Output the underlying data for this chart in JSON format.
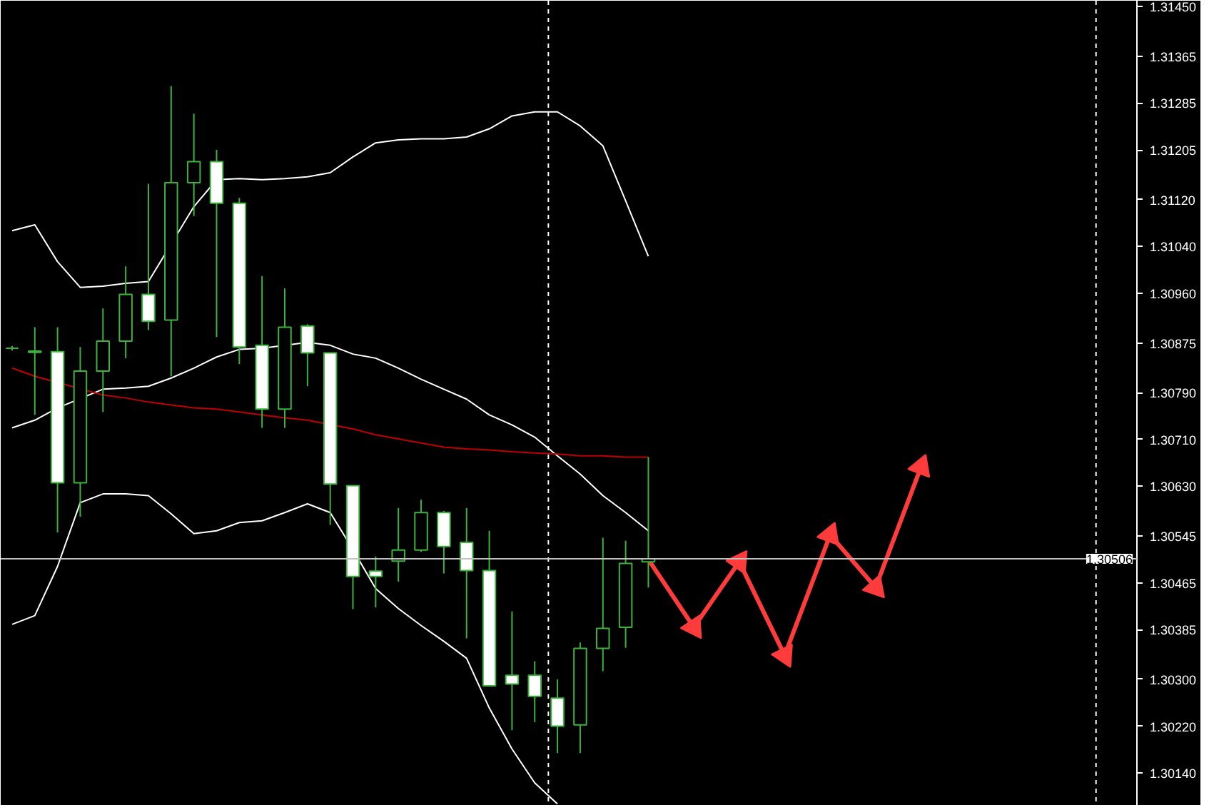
{
  "chart_data": {
    "type": "candlestick",
    "color": "#3cb43c",
    "tick_labels": "y",
    "grid": false,
    "marker": "none",
    "line_style": "solid",
    "categories": [
      null,
      null,
      null,
      null,
      null,
      null,
      null,
      null,
      null,
      null,
      null,
      null,
      null,
      null,
      null,
      null,
      null,
      null,
      null,
      null,
      null,
      null,
      null,
      null,
      null,
      null,
      null,
      null,
      null,
      null,
      null,
      null,
      null,
      null,
      null,
      null,
      null,
      null,
      null,
      null,
      null,
      null,
      null,
      null,
      null,
      null,
      null,
      null,
      null,
      null
    ],
    "ohlc": [
      [
        1.30866,
        1.3087,
        1.30862,
        1.30866
      ],
      [
        1.30861,
        1.30902,
        1.30752,
        1.30859
      ],
      [
        1.3086,
        1.30902,
        1.30551,
        1.30636
      ],
      [
        1.30636,
        1.30868,
        1.30578,
        1.30827
      ],
      [
        1.30827,
        1.30934,
        1.30757,
        1.30878
      ],
      [
        1.30878,
        1.31006,
        1.30849,
        1.30958
      ],
      [
        1.30958,
        1.31147,
        1.30897,
        1.30912
      ],
      [
        1.30914,
        1.31314,
        1.30818,
        1.31149
      ],
      [
        1.31149,
        1.31267,
        1.31092,
        1.31185
      ],
      [
        1.31185,
        1.31205,
        1.30885,
        1.31114
      ],
      [
        1.31114,
        1.31123,
        1.30839,
        1.30868
      ],
      [
        1.30871,
        1.30989,
        1.3073,
        1.30762
      ],
      [
        1.30762,
        1.30968,
        1.3073,
        1.30902
      ],
      [
        1.30904,
        1.30907,
        1.30801,
        1.30858
      ],
      [
        1.30858,
        1.30858,
        1.30564,
        1.30634
      ],
      [
        1.30631,
        1.30631,
        1.3042,
        1.30476
      ],
      [
        1.30485,
        1.3051,
        1.30423,
        1.30476
      ],
      [
        1.30502,
        1.30593,
        1.30467,
        1.30521
      ],
      [
        1.30521,
        1.30607,
        1.30518,
        1.30585
      ],
      [
        1.30585,
        1.30588,
        1.30481,
        1.30527
      ],
      [
        1.30534,
        1.30593,
        1.3037,
        1.30486
      ],
      [
        1.30486,
        1.30554,
        1.30289,
        1.30289
      ],
      [
        1.30307,
        1.30416,
        1.30213,
        1.30292
      ],
      [
        1.30307,
        1.30331,
        1.30227,
        1.30271
      ],
      [
        1.30268,
        1.303,
        1.30174,
        1.3022
      ],
      [
        1.30222,
        1.30363,
        1.30174,
        1.30353
      ],
      [
        1.30353,
        1.30542,
        1.30314,
        1.30387
      ],
      [
        1.30389,
        1.30537,
        1.30354,
        1.30498
      ],
      [
        1.30501,
        1.3068,
        1.30457,
        1.30506
      ],
      null,
      null,
      null,
      null,
      null,
      null,
      null,
      null,
      null,
      null,
      null,
      null,
      null,
      null,
      null,
      null,
      null,
      null,
      null,
      null,
      null
    ],
    "series": [
      {
        "type": "line",
        "color": "#ffffff",
        "values": [
          1.31067,
          1.31077,
          1.31014,
          1.3097,
          1.30972,
          1.30977,
          1.3098,
          null,
          1.31108,
          1.31154,
          1.31156,
          1.31154,
          1.31156,
          1.31159,
          1.31166,
          1.31193,
          1.31217,
          1.31222,
          1.31224,
          1.31224,
          1.31227,
          1.31241,
          1.31263,
          1.3127,
          1.3127,
          1.31246,
          1.31212,
          1.31118,
          1.31023,
          null,
          null,
          null,
          null,
          null,
          null,
          null,
          null,
          null,
          null,
          null,
          null,
          null,
          null,
          null,
          null,
          null,
          null,
          null,
          null,
          null
        ]
      },
      {
        "type": "line",
        "color": "#ffffff",
        "values": [
          1.3073,
          1.30743,
          1.30764,
          null,
          1.30796,
          1.30798,
          1.30801,
          1.30815,
          1.30832,
          1.30851,
          1.30864,
          1.30866,
          null,
          1.30876,
          1.30871,
          1.30856,
          1.30849,
          1.30832,
          1.30813,
          1.30796,
          1.30779,
          1.30752,
          1.30735,
          1.30714,
          1.30682,
          1.30651,
          1.30614,
          1.30585,
          1.30554,
          null,
          null,
          null,
          null,
          null,
          null,
          null,
          null,
          null,
          null,
          null,
          null,
          null,
          null,
          null,
          null,
          null,
          null,
          null,
          null,
          null
        ]
      },
      {
        "type": "line",
        "color": "#ffffff",
        "values": [
          1.30394,
          1.30409,
          1.30493,
          1.30602,
          1.30617,
          1.30617,
          1.30614,
          1.30583,
          1.30549,
          1.30554,
          1.30568,
          1.30571,
          1.30585,
          1.306,
          1.30585,
          1.30522,
          1.30455,
          1.30421,
          1.30392,
          1.30365,
          1.30336,
          1.30251,
          1.30181,
          1.30123,
          1.30087,
          null,
          null,
          null,
          null,
          null,
          null,
          null,
          null,
          null,
          null,
          null,
          null,
          null,
          null,
          null,
          null,
          null,
          null,
          null,
          null,
          null,
          null,
          null,
          null,
          null
        ]
      },
      {
        "type": "line",
        "color": "#c00000",
        "values": [
          1.30832,
          1.30818,
          null,
          null,
          1.30786,
          1.30781,
          1.30774,
          1.30769,
          1.30764,
          1.30762,
          1.30757,
          1.30752,
          1.30747,
          1.30743,
          null,
          1.30728,
          1.30718,
          1.30711,
          1.30704,
          1.30697,
          1.30694,
          1.30692,
          1.30689,
          1.30687,
          1.30685,
          1.30682,
          1.30682,
          1.3068,
          1.3068,
          null,
          null,
          null,
          null,
          null,
          null,
          null,
          null,
          null,
          null,
          null,
          null,
          null,
          null,
          null,
          null,
          null,
          null,
          null,
          null,
          null
        ]
      },
      {
        "type": "line",
        "color": "#ff3b3b",
        "marker": "triangle",
        "values": [
          null,
          null,
          null,
          null,
          null,
          null,
          null,
          null,
          null,
          null,
          null,
          null,
          null,
          null,
          null,
          null,
          null,
          null,
          null,
          null,
          null,
          null,
          null,
          null,
          null,
          null,
          null,
          null,
          1.30505,
          null,
          1.30389,
          null,
          1.30501,
          null,
          1.30341,
          null,
          1.30547,
          null,
          1.30457,
          null,
          1.30663,
          null,
          null,
          null,
          null,
          null,
          null,
          null,
          null,
          null
        ]
      }
    ],
    "ref_lines": [
      {
        "axis": "y",
        "value": 1.30506,
        "label": "1.30506",
        "color": "#c0c0c0"
      }
    ],
    "ylim": [
      1.30084,
      1.3146
    ],
    "yticks": [
      {
        "value": 1.3014,
        "label": "1.30140"
      },
      {
        "value": 1.3022,
        "label": "1.30220"
      },
      {
        "value": 1.303,
        "label": "1.30300"
      },
      {
        "value": 1.30385,
        "label": "1.30385"
      },
      {
        "value": 1.30465,
        "label": "1.30465"
      },
      {
        "value": 1.30545,
        "label": "1.30545"
      },
      {
        "value": 1.3063,
        "label": "1.30630"
      },
      {
        "value": 1.3071,
        "label": "1.30710"
      },
      {
        "value": 1.3079,
        "label": "1.30790"
      },
      {
        "value": 1.30875,
        "label": "1.30875"
      },
      {
        "value": 1.3096,
        "label": "1.30960"
      },
      {
        "value": 1.3104,
        "label": "1.31040"
      },
      {
        "value": 1.3112,
        "label": "1.31120"
      },
      {
        "value": 1.31205,
        "label": "1.31205"
      },
      {
        "value": 1.31285,
        "label": "1.31285"
      },
      {
        "value": 1.31365,
        "label": "1.31365"
      },
      {
        "value": 1.3145,
        "label": "1.31450"
      }
    ]
  }
}
